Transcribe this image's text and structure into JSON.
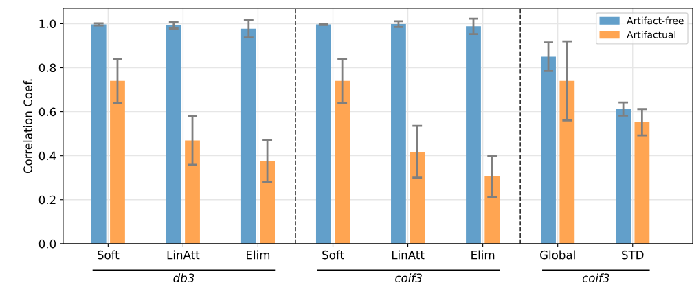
{
  "chart_data": {
    "type": "bar",
    "ylabel": "Correlation Coef.",
    "categories": [
      "Soft",
      "LinAtt",
      "Elim",
      "Soft",
      "LinAtt",
      "Elim",
      "Global",
      "STD"
    ],
    "series": [
      {
        "name": "Artifact-free",
        "color": "#629fca",
        "values": [
          0.997,
          0.993,
          0.977,
          0.997,
          0.998,
          0.988,
          0.85,
          0.612
        ],
        "errors": [
          0.005,
          0.015,
          0.04,
          0.003,
          0.013,
          0.035,
          0.065,
          0.03
        ]
      },
      {
        "name": "Artifactual",
        "color": "#ffa552",
        "values": [
          0.74,
          0.469,
          0.375,
          0.74,
          0.418,
          0.306,
          0.74,
          0.552
        ],
        "errors": [
          0.1,
          0.11,
          0.095,
          0.1,
          0.118,
          0.094,
          0.18,
          0.06
        ]
      }
    ],
    "ylim": [
      0,
      1.07
    ],
    "yticks": [
      {
        "value": 0,
        "label": "0.0"
      },
      0.2,
      0.4,
      0.6,
      0.8,
      {
        "value": 1,
        "label": "1.0"
      }
    ],
    "annotations": [
      "db3",
      "coif3",
      "coif3"
    ],
    "grid": true,
    "legend": "top right"
  }
}
